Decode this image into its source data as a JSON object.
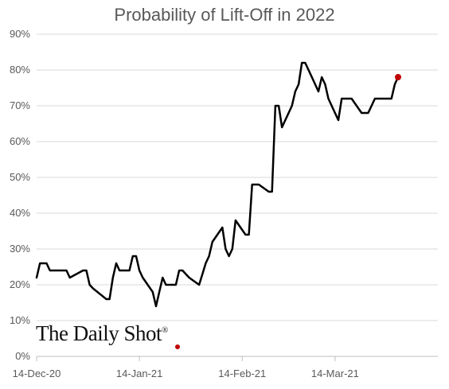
{
  "chart_data": {
    "type": "line",
    "title": "Probability of Lift-Off in 2022",
    "xlabel": "",
    "ylabel": "",
    "ylim": [
      0,
      90
    ],
    "y_ticks": [
      "0%",
      "10%",
      "20%",
      "30%",
      "40%",
      "50%",
      "60%",
      "70%",
      "80%",
      "90%"
    ],
    "x_tick_labels": [
      {
        "date": "2020-12-14",
        "label": "14-Dec-20"
      },
      {
        "date": "2021-01-14",
        "label": "14-Jan-21"
      },
      {
        "date": "2021-02-14",
        "label": "14-Feb-21"
      },
      {
        "date": "2021-03-14",
        "label": "14-Mar-21"
      }
    ],
    "x_range": [
      "2020-12-14",
      "2021-04-14"
    ],
    "grid": {
      "horizontal": true,
      "vertical": false
    },
    "line_color": "#000000",
    "last_point_marker_color": "#c00000",
    "series": [
      {
        "x": [
          "2020-12-14",
          "2020-12-15",
          "2020-12-16",
          "2020-12-17",
          "2020-12-18",
          "2020-12-21",
          "2020-12-22",
          "2020-12-23",
          "2020-12-24",
          "2020-12-28",
          "2020-12-29",
          "2020-12-30",
          "2020-12-31",
          "2021-01-04",
          "2021-01-05",
          "2021-01-06",
          "2021-01-07",
          "2021-01-08",
          "2021-01-11",
          "2021-01-12",
          "2021-01-13",
          "2021-01-14",
          "2021-01-15",
          "2021-01-18",
          "2021-01-19",
          "2021-01-20",
          "2021-01-21",
          "2021-01-22",
          "2021-01-25",
          "2021-01-26",
          "2021-01-27",
          "2021-01-28",
          "2021-01-29",
          "2021-02-01",
          "2021-02-02",
          "2021-02-03",
          "2021-02-04",
          "2021-02-05",
          "2021-02-08",
          "2021-02-09",
          "2021-02-10",
          "2021-02-11",
          "2021-02-12",
          "2021-02-15",
          "2021-02-16",
          "2021-02-17",
          "2021-02-18",
          "2021-02-19",
          "2021-02-22",
          "2021-02-23",
          "2021-02-24",
          "2021-02-25",
          "2021-02-26",
          "2021-03-01",
          "2021-03-02",
          "2021-03-03",
          "2021-03-04",
          "2021-03-05",
          "2021-03-08",
          "2021-03-09",
          "2021-03-10",
          "2021-03-11",
          "2021-03-12",
          "2021-03-15",
          "2021-03-16",
          "2021-03-17",
          "2021-03-18",
          "2021-03-19",
          "2021-03-22",
          "2021-03-23",
          "2021-03-24",
          "2021-03-25",
          "2021-03-26",
          "2021-03-29",
          "2021-03-30",
          "2021-03-31",
          "2021-04-01",
          "2021-04-02"
        ],
        "y": [
          22,
          26,
          26,
          26,
          24,
          24,
          24,
          24,
          22,
          24,
          24,
          20,
          19,
          16,
          16,
          22,
          26,
          24,
          24,
          28,
          28,
          24,
          22,
          18,
          14,
          18,
          22,
          20,
          20,
          24,
          24,
          23,
          22,
          20,
          23,
          26,
          28,
          32,
          36,
          30,
          28,
          30,
          38,
          34,
          34,
          48,
          48,
          48,
          46,
          46,
          70,
          70,
          64,
          70,
          74,
          76,
          82,
          82,
          76,
          74,
          78,
          76,
          72,
          66,
          72,
          72,
          72,
          72,
          68,
          68,
          68,
          70,
          72,
          72,
          72,
          72,
          76,
          78
        ]
      }
    ]
  },
  "branding": {
    "logo_text": "The Daily Shot",
    "registered_mark": "®"
  }
}
